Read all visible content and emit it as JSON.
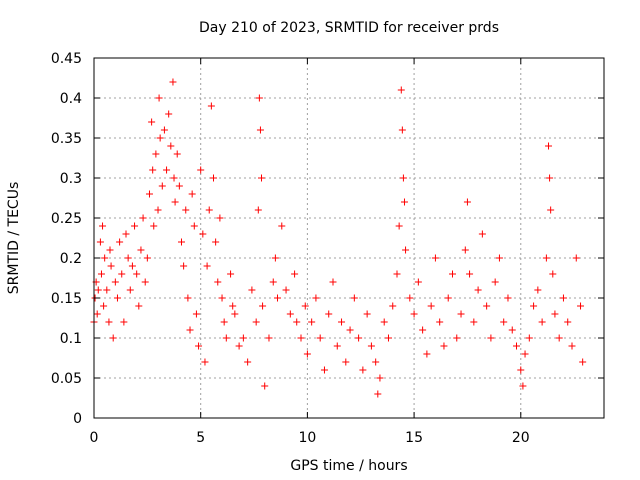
{
  "chart_data": {
    "type": "scatter",
    "title": "Day 210 of 2023, SRMTID for receiver prds",
    "xlabel": "GPS time / hours",
    "ylabel": "SRMTID / TECUs",
    "xlim": [
      0,
      23.9
    ],
    "ylim": [
      0,
      0.45
    ],
    "xticks": [
      0,
      5,
      10,
      15,
      20
    ],
    "xtick_labels": [
      "0",
      "5",
      "10",
      "15",
      "20"
    ],
    "yticks": [
      0,
      0.05,
      0.1,
      0.15,
      0.2,
      0.25,
      0.3,
      0.35,
      0.4,
      0.45
    ],
    "ytick_labels": [
      "0",
      "0.05",
      "0.1",
      "0.15",
      "0.2",
      "0.25",
      "0.3",
      "0.35",
      "0.4",
      "0.45"
    ],
    "grid": true,
    "marker": "+",
    "marker_color": "#ff0000",
    "series": [
      {
        "name": "SRMTID",
        "points": [
          [
            0.0,
            0.12
          ],
          [
            0.05,
            0.15
          ],
          [
            0.1,
            0.17
          ],
          [
            0.15,
            0.13
          ],
          [
            0.2,
            0.16
          ],
          [
            0.3,
            0.22
          ],
          [
            0.35,
            0.18
          ],
          [
            0.4,
            0.24
          ],
          [
            0.45,
            0.14
          ],
          [
            0.5,
            0.2
          ],
          [
            0.6,
            0.16
          ],
          [
            0.7,
            0.12
          ],
          [
            0.75,
            0.21
          ],
          [
            0.8,
            0.19
          ],
          [
            0.9,
            0.1
          ],
          [
            1.0,
            0.17
          ],
          [
            1.1,
            0.15
          ],
          [
            1.2,
            0.22
          ],
          [
            1.3,
            0.18
          ],
          [
            1.4,
            0.12
          ],
          [
            1.5,
            0.23
          ],
          [
            1.6,
            0.2
          ],
          [
            1.7,
            0.16
          ],
          [
            1.8,
            0.19
          ],
          [
            1.9,
            0.24
          ],
          [
            2.0,
            0.18
          ],
          [
            2.1,
            0.14
          ],
          [
            2.2,
            0.21
          ],
          [
            2.3,
            0.25
          ],
          [
            2.4,
            0.17
          ],
          [
            2.5,
            0.2
          ],
          [
            2.6,
            0.28
          ],
          [
            2.7,
            0.37
          ],
          [
            2.75,
            0.31
          ],
          [
            2.8,
            0.24
          ],
          [
            2.9,
            0.33
          ],
          [
            3.0,
            0.26
          ],
          [
            3.05,
            0.4
          ],
          [
            3.1,
            0.35
          ],
          [
            3.2,
            0.29
          ],
          [
            3.3,
            0.36
          ],
          [
            3.4,
            0.31
          ],
          [
            3.5,
            0.38
          ],
          [
            3.6,
            0.34
          ],
          [
            3.7,
            0.42
          ],
          [
            3.75,
            0.3
          ],
          [
            3.8,
            0.27
          ],
          [
            3.9,
            0.33
          ],
          [
            4.0,
            0.29
          ],
          [
            4.1,
            0.22
          ],
          [
            4.2,
            0.19
          ],
          [
            4.3,
            0.26
          ],
          [
            4.4,
            0.15
          ],
          [
            4.5,
            0.11
          ],
          [
            4.6,
            0.28
          ],
          [
            4.7,
            0.24
          ],
          [
            4.8,
            0.13
          ],
          [
            4.9,
            0.09
          ],
          [
            5.0,
            0.31
          ],
          [
            5.1,
            0.23
          ],
          [
            5.2,
            0.07
          ],
          [
            5.3,
            0.19
          ],
          [
            5.4,
            0.26
          ],
          [
            5.5,
            0.39
          ],
          [
            5.6,
            0.3
          ],
          [
            5.7,
            0.22
          ],
          [
            5.8,
            0.17
          ],
          [
            5.9,
            0.25
          ],
          [
            6.0,
            0.15
          ],
          [
            6.1,
            0.12
          ],
          [
            6.2,
            0.1
          ],
          [
            6.4,
            0.18
          ],
          [
            6.5,
            0.14
          ],
          [
            6.6,
            0.13
          ],
          [
            6.8,
            0.09
          ],
          [
            7.0,
            0.1
          ],
          [
            7.2,
            0.07
          ],
          [
            7.4,
            0.16
          ],
          [
            7.6,
            0.12
          ],
          [
            7.7,
            0.26
          ],
          [
            7.75,
            0.4
          ],
          [
            7.8,
            0.36
          ],
          [
            7.85,
            0.3
          ],
          [
            7.9,
            0.14
          ],
          [
            8.0,
            0.04
          ],
          [
            8.2,
            0.1
          ],
          [
            8.4,
            0.17
          ],
          [
            8.5,
            0.2
          ],
          [
            8.6,
            0.15
          ],
          [
            8.8,
            0.24
          ],
          [
            9.0,
            0.16
          ],
          [
            9.2,
            0.13
          ],
          [
            9.4,
            0.18
          ],
          [
            9.5,
            0.12
          ],
          [
            9.7,
            0.1
          ],
          [
            9.9,
            0.14
          ],
          [
            10.0,
            0.08
          ],
          [
            10.2,
            0.12
          ],
          [
            10.4,
            0.15
          ],
          [
            10.6,
            0.1
          ],
          [
            10.8,
            0.06
          ],
          [
            11.0,
            0.13
          ],
          [
            11.2,
            0.17
          ],
          [
            11.4,
            0.09
          ],
          [
            11.6,
            0.12
          ],
          [
            11.8,
            0.07
          ],
          [
            12.0,
            0.11
          ],
          [
            12.2,
            0.15
          ],
          [
            12.4,
            0.1
          ],
          [
            12.6,
            0.06
          ],
          [
            12.8,
            0.13
          ],
          [
            13.0,
            0.09
          ],
          [
            13.2,
            0.07
          ],
          [
            13.3,
            0.03
          ],
          [
            13.4,
            0.05
          ],
          [
            13.6,
            0.12
          ],
          [
            13.8,
            0.1
          ],
          [
            14.0,
            0.14
          ],
          [
            14.2,
            0.18
          ],
          [
            14.3,
            0.24
          ],
          [
            14.4,
            0.41
          ],
          [
            14.45,
            0.36
          ],
          [
            14.5,
            0.3
          ],
          [
            14.55,
            0.27
          ],
          [
            14.6,
            0.21
          ],
          [
            14.8,
            0.15
          ],
          [
            15.0,
            0.13
          ],
          [
            15.2,
            0.17
          ],
          [
            15.4,
            0.11
          ],
          [
            15.6,
            0.08
          ],
          [
            15.8,
            0.14
          ],
          [
            16.0,
            0.2
          ],
          [
            16.2,
            0.12
          ],
          [
            16.4,
            0.09
          ],
          [
            16.6,
            0.15
          ],
          [
            16.8,
            0.18
          ],
          [
            17.0,
            0.1
          ],
          [
            17.2,
            0.13
          ],
          [
            17.4,
            0.21
          ],
          [
            17.5,
            0.27
          ],
          [
            17.6,
            0.18
          ],
          [
            17.8,
            0.12
          ],
          [
            18.0,
            0.16
          ],
          [
            18.2,
            0.23
          ],
          [
            18.4,
            0.14
          ],
          [
            18.6,
            0.1
          ],
          [
            18.8,
            0.17
          ],
          [
            19.0,
            0.2
          ],
          [
            19.2,
            0.12
          ],
          [
            19.4,
            0.15
          ],
          [
            19.6,
            0.11
          ],
          [
            19.8,
            0.09
          ],
          [
            20.0,
            0.06
          ],
          [
            20.1,
            0.04
          ],
          [
            20.2,
            0.08
          ],
          [
            20.4,
            0.1
          ],
          [
            20.6,
            0.14
          ],
          [
            20.8,
            0.16
          ],
          [
            21.0,
            0.12
          ],
          [
            21.2,
            0.2
          ],
          [
            21.3,
            0.34
          ],
          [
            21.35,
            0.3
          ],
          [
            21.4,
            0.26
          ],
          [
            21.5,
            0.18
          ],
          [
            21.6,
            0.13
          ],
          [
            21.8,
            0.1
          ],
          [
            22.0,
            0.15
          ],
          [
            22.2,
            0.12
          ],
          [
            22.4,
            0.09
          ],
          [
            22.6,
            0.2
          ],
          [
            22.8,
            0.14
          ],
          [
            22.9,
            0.07
          ]
        ]
      }
    ]
  }
}
